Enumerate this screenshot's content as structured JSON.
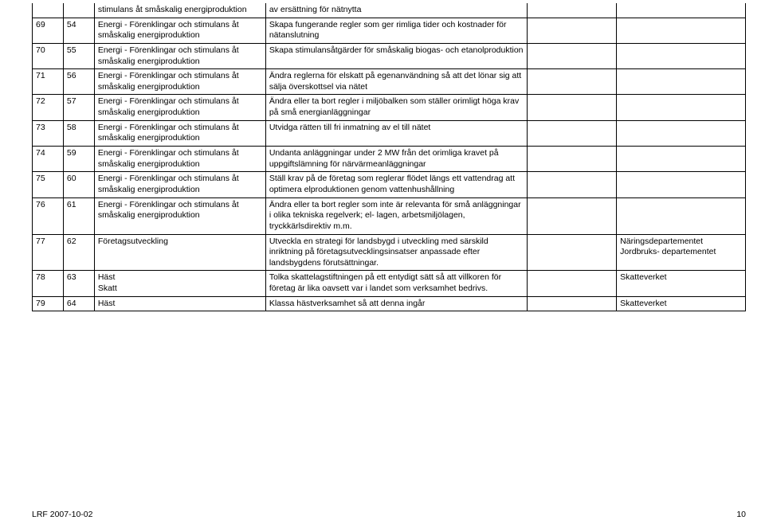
{
  "category_energi": "Energi - Förenklingar och stimulans åt småskalig energiproduktion",
  "category_energi_tail": "stimulans åt småskalig energiproduktion",
  "rows": [
    {
      "a": "",
      "b": "",
      "c_key": "category_energi_tail",
      "d": "av ersättning för nätnytta",
      "e": "",
      "f": ""
    },
    {
      "a": "69",
      "b": "54",
      "c_key": "category_energi",
      "d": "Skapa fungerande regler som ger rimliga tider och kostnader för nätanslutning",
      "e": "",
      "f": ""
    },
    {
      "a": "70",
      "b": "55",
      "c_key": "category_energi",
      "d": "Skapa stimulansåtgärder för småskalig biogas- och etanolproduktion",
      "e": "",
      "f": ""
    },
    {
      "a": "71",
      "b": "56",
      "c_key": "category_energi",
      "d": "Ändra reglerna för elskatt på egenanvändning så att det lönar sig att sälja överskottsel via nätet",
      "e": "",
      "f": ""
    },
    {
      "a": "72",
      "b": "57",
      "c_key": "category_energi",
      "d": "Ändra eller ta bort regler i miljöbalken som ställer orimligt höga krav på små energianläggningar",
      "e": "",
      "f": ""
    },
    {
      "a": "73",
      "b": "58",
      "c_key": "category_energi",
      "d": "Utvidga rätten till fri inmatning av el till nätet",
      "e": "",
      "f": ""
    },
    {
      "a": "74",
      "b": "59",
      "c_key": "category_energi",
      "d": "Undanta anläggningar under 2 MW från det orimliga kravet på uppgiftslämning för närvärmeanläggningar",
      "e": "",
      "f": ""
    },
    {
      "a": "75",
      "b": "60",
      "c_key": "category_energi",
      "d": "Ställ krav på de företag som reglerar flödet längs ett vattendrag att optimera elproduktionen genom vattenhushållning",
      "e": "",
      "f": ""
    },
    {
      "a": "76",
      "b": "61",
      "c_key": "category_energi",
      "d": "Ändra eller ta bort regler som inte är relevanta för små anläggningar i olika tekniska regelverk; el- lagen, arbetsmiljölagen, tryckkärlsdirektiv m.m.",
      "e": "",
      "f": ""
    },
    {
      "a": "77",
      "b": "62",
      "c_text": "Företagsutveckling",
      "d": "Utveckla en strategi för landsbygd i utveckling med särskild inriktning på företagsutvecklingsinsatser anpassade efter landsbygdens förutsättningar.",
      "e": "",
      "f": "Näringsdepartementet Jordbruks- departementet"
    },
    {
      "a": "78",
      "b": "63",
      "c_text": "Häst\nSkatt",
      "d": "Tolka skattelagstiftningen på ett entydigt sätt så att villkoren för företag är lika oavsett var i landet som verksamhet bedrivs.",
      "e": "",
      "f": "Skatteverket"
    },
    {
      "a": "79",
      "b": "64",
      "c_text": "Häst",
      "d": "Klassa hästverksamhet så att denna ingår",
      "e": "",
      "f": "Skatteverket"
    }
  ],
  "footer": {
    "left": "LRF 2007-10-02",
    "page": "10"
  }
}
